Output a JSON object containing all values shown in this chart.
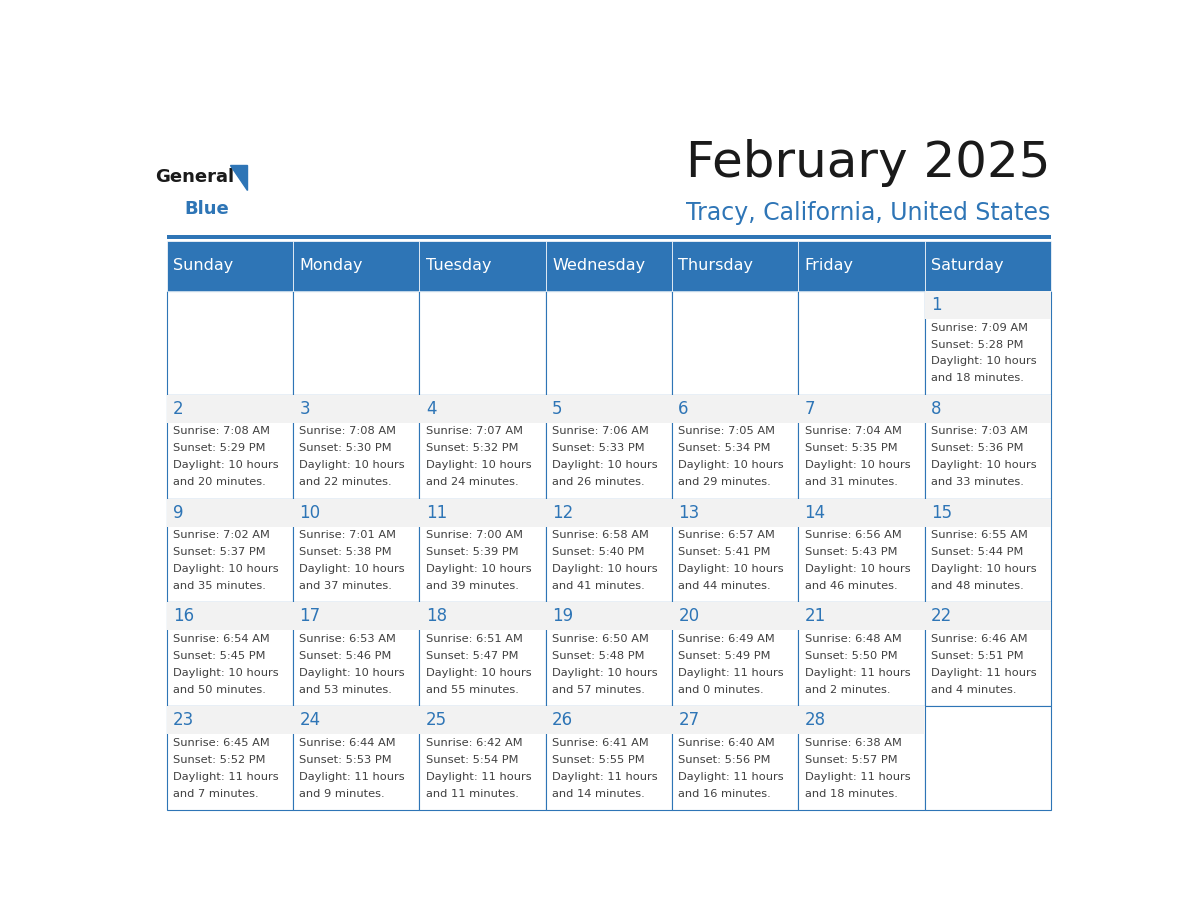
{
  "title": "February 2025",
  "subtitle": "Tracy, California, United States",
  "header_color": "#2E75B6",
  "header_text_color": "#FFFFFF",
  "day_names": [
    "Sunday",
    "Monday",
    "Tuesday",
    "Wednesday",
    "Thursday",
    "Friday",
    "Saturday"
  ],
  "background_color": "#FFFFFF",
  "alt_row_color": "#F2F2F2",
  "cell_border_color": "#2E75B6",
  "day_num_color": "#2E75B6",
  "info_text_color": "#404040",
  "logo_general_color": "#1A1A1A",
  "logo_blue_color": "#2E75B6",
  "weeks": [
    [
      {
        "day": null,
        "info": null
      },
      {
        "day": null,
        "info": null
      },
      {
        "day": null,
        "info": null
      },
      {
        "day": null,
        "info": null
      },
      {
        "day": null,
        "info": null
      },
      {
        "day": null,
        "info": null
      },
      {
        "day": 1,
        "info": "Sunrise: 7:09 AM\nSunset: 5:28 PM\nDaylight: 10 hours\nand 18 minutes."
      }
    ],
    [
      {
        "day": 2,
        "info": "Sunrise: 7:08 AM\nSunset: 5:29 PM\nDaylight: 10 hours\nand 20 minutes."
      },
      {
        "day": 3,
        "info": "Sunrise: 7:08 AM\nSunset: 5:30 PM\nDaylight: 10 hours\nand 22 minutes."
      },
      {
        "day": 4,
        "info": "Sunrise: 7:07 AM\nSunset: 5:32 PM\nDaylight: 10 hours\nand 24 minutes."
      },
      {
        "day": 5,
        "info": "Sunrise: 7:06 AM\nSunset: 5:33 PM\nDaylight: 10 hours\nand 26 minutes."
      },
      {
        "day": 6,
        "info": "Sunrise: 7:05 AM\nSunset: 5:34 PM\nDaylight: 10 hours\nand 29 minutes."
      },
      {
        "day": 7,
        "info": "Sunrise: 7:04 AM\nSunset: 5:35 PM\nDaylight: 10 hours\nand 31 minutes."
      },
      {
        "day": 8,
        "info": "Sunrise: 7:03 AM\nSunset: 5:36 PM\nDaylight: 10 hours\nand 33 minutes."
      }
    ],
    [
      {
        "day": 9,
        "info": "Sunrise: 7:02 AM\nSunset: 5:37 PM\nDaylight: 10 hours\nand 35 minutes."
      },
      {
        "day": 10,
        "info": "Sunrise: 7:01 AM\nSunset: 5:38 PM\nDaylight: 10 hours\nand 37 minutes."
      },
      {
        "day": 11,
        "info": "Sunrise: 7:00 AM\nSunset: 5:39 PM\nDaylight: 10 hours\nand 39 minutes."
      },
      {
        "day": 12,
        "info": "Sunrise: 6:58 AM\nSunset: 5:40 PM\nDaylight: 10 hours\nand 41 minutes."
      },
      {
        "day": 13,
        "info": "Sunrise: 6:57 AM\nSunset: 5:41 PM\nDaylight: 10 hours\nand 44 minutes."
      },
      {
        "day": 14,
        "info": "Sunrise: 6:56 AM\nSunset: 5:43 PM\nDaylight: 10 hours\nand 46 minutes."
      },
      {
        "day": 15,
        "info": "Sunrise: 6:55 AM\nSunset: 5:44 PM\nDaylight: 10 hours\nand 48 minutes."
      }
    ],
    [
      {
        "day": 16,
        "info": "Sunrise: 6:54 AM\nSunset: 5:45 PM\nDaylight: 10 hours\nand 50 minutes."
      },
      {
        "day": 17,
        "info": "Sunrise: 6:53 AM\nSunset: 5:46 PM\nDaylight: 10 hours\nand 53 minutes."
      },
      {
        "day": 18,
        "info": "Sunrise: 6:51 AM\nSunset: 5:47 PM\nDaylight: 10 hours\nand 55 minutes."
      },
      {
        "day": 19,
        "info": "Sunrise: 6:50 AM\nSunset: 5:48 PM\nDaylight: 10 hours\nand 57 minutes."
      },
      {
        "day": 20,
        "info": "Sunrise: 6:49 AM\nSunset: 5:49 PM\nDaylight: 11 hours\nand 0 minutes."
      },
      {
        "day": 21,
        "info": "Sunrise: 6:48 AM\nSunset: 5:50 PM\nDaylight: 11 hours\nand 2 minutes."
      },
      {
        "day": 22,
        "info": "Sunrise: 6:46 AM\nSunset: 5:51 PM\nDaylight: 11 hours\nand 4 minutes."
      }
    ],
    [
      {
        "day": 23,
        "info": "Sunrise: 6:45 AM\nSunset: 5:52 PM\nDaylight: 11 hours\nand 7 minutes."
      },
      {
        "day": 24,
        "info": "Sunrise: 6:44 AM\nSunset: 5:53 PM\nDaylight: 11 hours\nand 9 minutes."
      },
      {
        "day": 25,
        "info": "Sunrise: 6:42 AM\nSunset: 5:54 PM\nDaylight: 11 hours\nand 11 minutes."
      },
      {
        "day": 26,
        "info": "Sunrise: 6:41 AM\nSunset: 5:55 PM\nDaylight: 11 hours\nand 14 minutes."
      },
      {
        "day": 27,
        "info": "Sunrise: 6:40 AM\nSunset: 5:56 PM\nDaylight: 11 hours\nand 16 minutes."
      },
      {
        "day": 28,
        "info": "Sunrise: 6:38 AM\nSunset: 5:57 PM\nDaylight: 11 hours\nand 18 minutes."
      },
      {
        "day": null,
        "info": null
      }
    ]
  ]
}
